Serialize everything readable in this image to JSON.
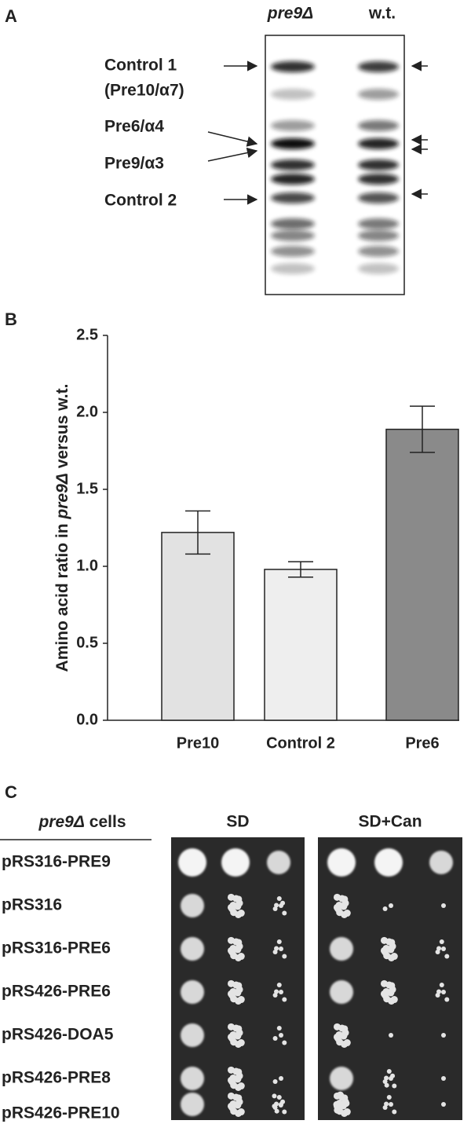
{
  "panel_a": {
    "letter": "A",
    "lanes": [
      "pre9Δ",
      "w.t."
    ],
    "labels": [
      "Control 1",
      "(Pre10/α7)",
      "Pre6/α4",
      "Pre9/α3",
      "Control 2"
    ]
  },
  "chart_data": {
    "type": "bar",
    "panel_letter": "B",
    "y_label": [
      "Amino acid ratio in ",
      "pre9Δ",
      " versus w.t."
    ],
    "categories": [
      "Pre10",
      "Control 2",
      "Pre6"
    ],
    "values": [
      1.22,
      0.98,
      1.89
    ],
    "errors": [
      0.14,
      0.05,
      0.15
    ],
    "colors": [
      "#e2e2e2",
      "#eeeeee",
      "#8a8a8a"
    ],
    "ylim": [
      0,
      2.5
    ],
    "yticks": [
      {
        "value": 0,
        "label": "0.0"
      },
      0.5,
      {
        "value": 1,
        "label": "1.0"
      },
      1.5,
      {
        "value": 2,
        "label": "2.0"
      },
      2.5
    ]
  },
  "panel_c": {
    "letter": "C",
    "header": [
      "pre9Δ",
      " cells"
    ],
    "plates": [
      "SD",
      "SD+Can"
    ],
    "strains": [
      "pRS316-PRE9",
      "pRS316",
      "pRS316-PRE6",
      "pRS426-PRE6",
      "pRS426-DOA5",
      "pRS426-PRE8",
      "pRS426-PRE10"
    ]
  }
}
